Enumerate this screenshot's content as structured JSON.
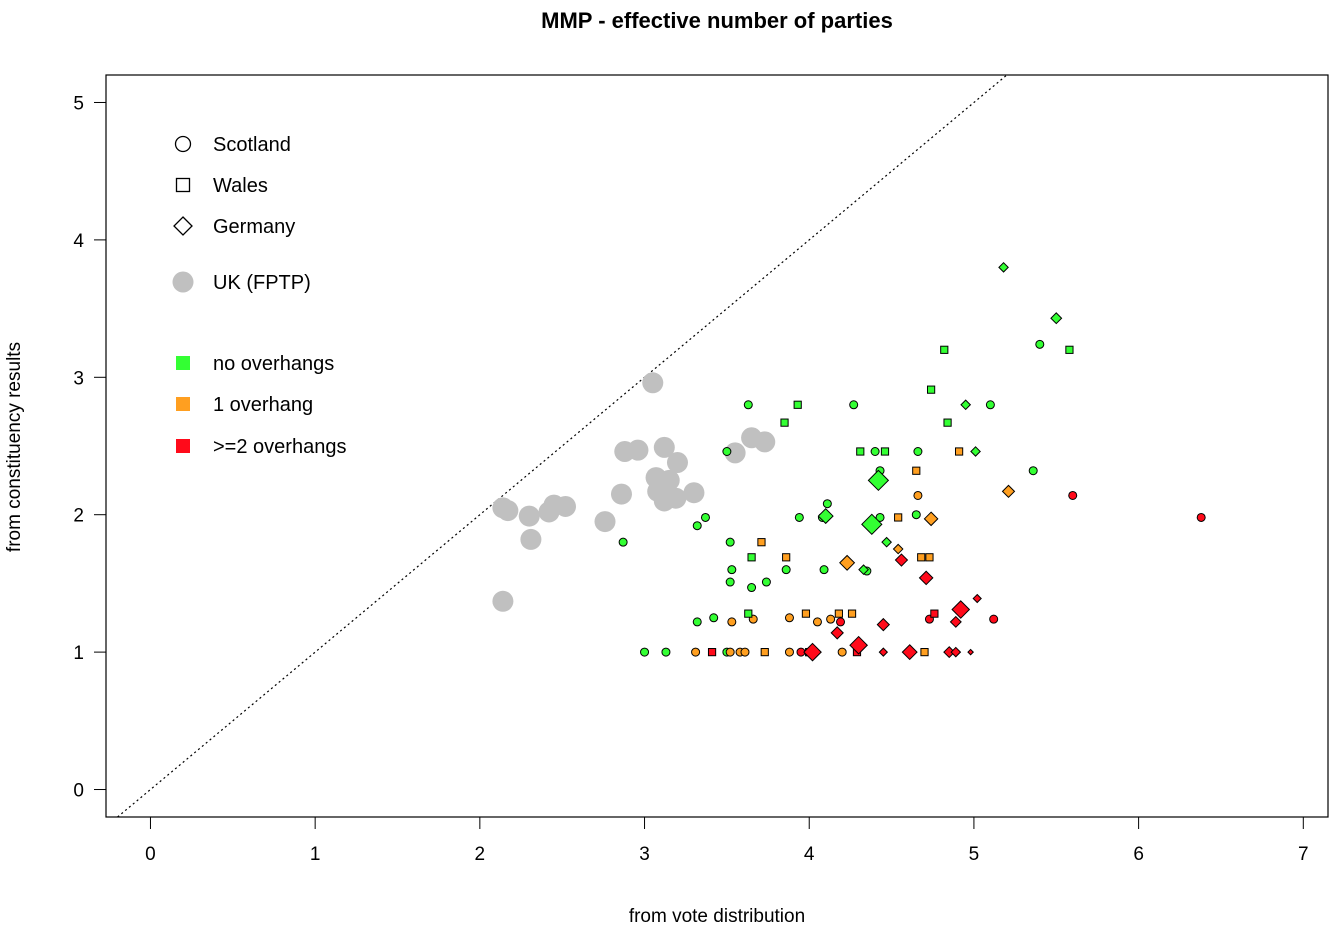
{
  "chart_data": {
    "type": "scatter",
    "title": "MMP - effective number of parties",
    "xlabel": "from vote distribution",
    "ylabel": "from constituency results",
    "xlim": [
      -0.27,
      7.15
    ],
    "ylim": [
      -0.2,
      5.2
    ],
    "xticks": [
      0,
      1,
      2,
      3,
      4,
      5,
      6,
      7
    ],
    "yticks": [
      0,
      1,
      2,
      3,
      4,
      5
    ],
    "xtick_labels": [
      "0",
      "1",
      "2",
      "3",
      "4",
      "5",
      "6",
      "7"
    ],
    "ytick_labels": [
      "0",
      "1",
      "2",
      "3",
      "4",
      "5"
    ],
    "reference_line": "y = x (dotted)",
    "colors": {
      "none": "#33ff33",
      "one": "#ff9f20",
      "two": "#ff0a1a",
      "fptp": "#c0c0c0",
      "outline": "#000000"
    },
    "legend_shapes": [
      {
        "label": "Scotland",
        "shape": "circle"
      },
      {
        "label": "Wales",
        "shape": "square"
      },
      {
        "label": "Germany",
        "shape": "diamond"
      },
      {
        "label": "UK (FPTP)",
        "shape": "fptp"
      }
    ],
    "legend_colors": [
      {
        "label": "no overhangs",
        "color": "none"
      },
      {
        "label": "1 overhang",
        "color": "one"
      },
      {
        "label": ">=2 overhangs",
        "color": "two"
      }
    ],
    "series": [
      {
        "name": "UK (FPTP)",
        "shape": "fptp",
        "points": [
          [
            2.14,
            2.05
          ],
          [
            2.17,
            2.03
          ],
          [
            2.14,
            1.37
          ],
          [
            2.3,
            1.99
          ],
          [
            2.31,
            1.82
          ],
          [
            2.42,
            2.02
          ],
          [
            2.45,
            2.07
          ],
          [
            2.52,
            2.06
          ],
          [
            2.76,
            1.95
          ],
          [
            2.86,
            2.15
          ],
          [
            2.88,
            2.46
          ],
          [
            2.96,
            2.47
          ],
          [
            3.05,
            2.96
          ],
          [
            3.07,
            2.27
          ],
          [
            3.08,
            2.17
          ],
          [
            3.12,
            2.1
          ],
          [
            3.12,
            2.49
          ],
          [
            3.15,
            2.25
          ],
          [
            3.19,
            2.12
          ],
          [
            3.2,
            2.38
          ],
          [
            3.3,
            2.16
          ],
          [
            3.55,
            2.45
          ],
          [
            3.65,
            2.56
          ],
          [
            3.73,
            2.53
          ],
          [
            3.09,
            2.2
          ]
        ]
      },
      {
        "name": "Scotland",
        "shape": "circle",
        "points": [
          [
            2.87,
            1.8,
            "none"
          ],
          [
            3.0,
            1.0,
            "none"
          ],
          [
            3.13,
            1.0,
            "none"
          ],
          [
            3.32,
            1.92,
            "none"
          ],
          [
            3.37,
            1.98,
            "none"
          ],
          [
            3.32,
            1.22,
            "none"
          ],
          [
            3.42,
            1.25,
            "none"
          ],
          [
            3.31,
            1.0,
            "one"
          ],
          [
            3.5,
            2.46,
            "none"
          ],
          [
            3.5,
            1.0,
            "none"
          ],
          [
            3.52,
            1.8,
            "none"
          ],
          [
            3.53,
            1.6,
            "none"
          ],
          [
            3.52,
            1.51,
            "none"
          ],
          [
            3.53,
            1.22,
            "one"
          ],
          [
            3.52,
            1.0,
            "one"
          ],
          [
            3.58,
            1.0,
            "one"
          ],
          [
            3.61,
            1.0,
            "one"
          ],
          [
            3.63,
            2.8,
            "none"
          ],
          [
            3.65,
            1.47,
            "none"
          ],
          [
            3.66,
            1.24,
            "one"
          ],
          [
            3.74,
            1.51,
            "none"
          ],
          [
            3.86,
            1.6,
            "none"
          ],
          [
            3.88,
            1.0,
            "one"
          ],
          [
            3.88,
            1.25,
            "one"
          ],
          [
            3.94,
            1.98,
            "none"
          ],
          [
            3.95,
            1.0,
            "two"
          ],
          [
            4.05,
            1.22,
            "one"
          ],
          [
            4.08,
            1.98,
            "none"
          ],
          [
            4.09,
            1.6,
            "none"
          ],
          [
            4.11,
            2.08,
            "none"
          ],
          [
            4.13,
            1.24,
            "one"
          ],
          [
            4.2,
            1.0,
            "one"
          ],
          [
            4.19,
            1.22,
            "two"
          ],
          [
            4.27,
            2.8,
            "none"
          ],
          [
            4.35,
            1.59,
            "none"
          ],
          [
            4.4,
            2.46,
            "none"
          ],
          [
            4.43,
            1.98,
            "none"
          ],
          [
            4.43,
            2.32,
            "none"
          ],
          [
            4.66,
            2.46,
            "none"
          ],
          [
            4.65,
            2.0,
            "none"
          ],
          [
            4.66,
            2.14,
            "one"
          ],
          [
            4.73,
            1.24,
            "two"
          ],
          [
            5.1,
            2.8,
            "none"
          ],
          [
            5.12,
            1.24,
            "two"
          ],
          [
            5.36,
            2.32,
            "none"
          ],
          [
            5.4,
            3.24,
            "none"
          ],
          [
            5.6,
            2.14,
            "two"
          ],
          [
            6.38,
            1.98,
            "two"
          ]
        ]
      },
      {
        "name": "Wales",
        "shape": "square",
        "points": [
          [
            3.41,
            1.0,
            "two"
          ],
          [
            3.63,
            1.28,
            "none"
          ],
          [
            3.65,
            1.69,
            "none"
          ],
          [
            3.71,
            1.8,
            "one"
          ],
          [
            3.73,
            1.0,
            "one"
          ],
          [
            3.85,
            2.67,
            "none"
          ],
          [
            3.86,
            1.69,
            "one"
          ],
          [
            3.93,
            2.8,
            "none"
          ],
          [
            3.98,
            1.28,
            "one"
          ],
          [
            4.0,
            1.0,
            "two"
          ],
          [
            4.0,
            1.0,
            "one"
          ],
          [
            4.18,
            1.28,
            "one"
          ],
          [
            4.26,
            1.28,
            "one"
          ],
          [
            4.29,
            1.0,
            "two"
          ],
          [
            4.31,
            2.46,
            "none"
          ],
          [
            4.46,
            2.46,
            "none"
          ],
          [
            4.54,
            1.98,
            "one"
          ],
          [
            4.65,
            2.32,
            "one"
          ],
          [
            4.68,
            1.69,
            "one"
          ],
          [
            4.7,
            1.0,
            "one"
          ],
          [
            4.73,
            1.69,
            "one"
          ],
          [
            4.74,
            2.91,
            "none"
          ],
          [
            4.76,
            1.28,
            "two"
          ],
          [
            4.82,
            3.2,
            "none"
          ],
          [
            4.84,
            2.67,
            "none"
          ],
          [
            4.91,
            2.46,
            "one"
          ],
          [
            5.58,
            3.2,
            "none"
          ]
        ]
      },
      {
        "name": "Germany",
        "shape": "diamond",
        "points": [
          [
            4.02,
            1.0,
            "two",
            13
          ],
          [
            4.1,
            1.99,
            "none",
            11
          ],
          [
            4.17,
            1.14,
            "two",
            9
          ],
          [
            4.23,
            1.65,
            "one",
            11
          ],
          [
            4.3,
            1.05,
            "two",
            13
          ],
          [
            4.33,
            1.6,
            "none",
            7
          ],
          [
            4.38,
            1.93,
            "none",
            15
          ],
          [
            4.42,
            2.25,
            "none",
            15
          ],
          [
            4.45,
            1.2,
            "two",
            9
          ],
          [
            4.47,
            1.8,
            "none",
            7
          ],
          [
            4.45,
            1.0,
            "two",
            6
          ],
          [
            4.54,
            1.75,
            "one",
            7
          ],
          [
            4.56,
            1.67,
            "two",
            9
          ],
          [
            4.61,
            1.0,
            "two",
            11
          ],
          [
            4.71,
            1.54,
            "two",
            10
          ],
          [
            4.74,
            1.97,
            "one",
            10
          ],
          [
            4.85,
            1.0,
            "two",
            8
          ],
          [
            4.89,
            1.0,
            "two",
            7
          ],
          [
            4.89,
            1.22,
            "two",
            8
          ],
          [
            4.92,
            1.31,
            "two",
            13
          ],
          [
            4.95,
            2.8,
            "none",
            7
          ],
          [
            4.98,
            1.0,
            "two",
            4
          ],
          [
            5.01,
            2.46,
            "none",
            7
          ],
          [
            5.02,
            1.39,
            "two",
            6
          ],
          [
            5.18,
            3.8,
            "none",
            7
          ],
          [
            5.21,
            2.17,
            "one",
            9
          ],
          [
            5.5,
            3.43,
            "none",
            8
          ]
        ]
      }
    ]
  }
}
